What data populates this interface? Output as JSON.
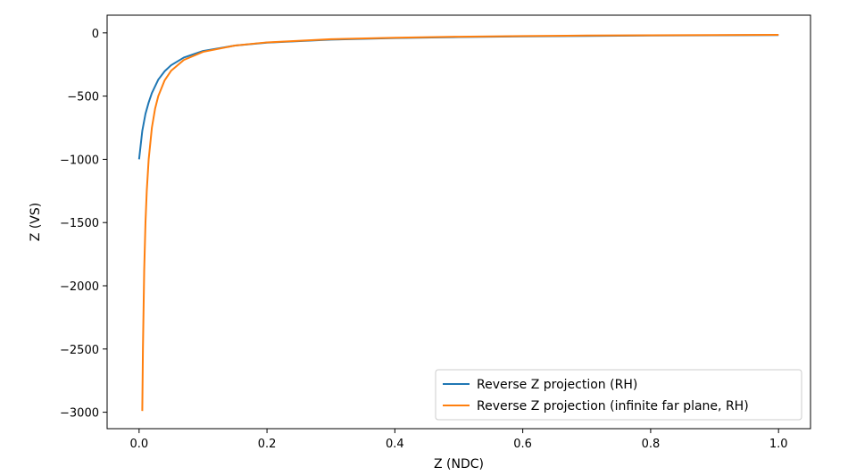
{
  "chart_data": {
    "type": "line",
    "xlabel": "Z (NDC)",
    "ylabel": "Z (VS)",
    "xlim": [
      -0.05,
      1.05
    ],
    "ylim": [
      -3130,
      140
    ],
    "x_ticks": [
      0.0,
      0.2,
      0.4,
      0.6,
      0.8,
      1.0
    ],
    "x_tick_labels": [
      "0.0",
      "0.2",
      "0.4",
      "0.6",
      "0.8",
      "1.0"
    ],
    "y_ticks": [
      0,
      -500,
      -1000,
      -1500,
      -2000,
      -2500,
      -3000
    ],
    "y_tick_labels": [
      "0",
      "−500",
      "−1000",
      "−1500",
      "−2000",
      "−2500",
      "−3000"
    ],
    "legend_position": "lower-right",
    "series": [
      {
        "name": "Reverse Z projection (RH)",
        "color": "#1f77b4",
        "x": [
          0.0,
          0.005,
          0.01,
          0.015,
          0.02,
          0.03,
          0.04,
          0.05,
          0.07,
          0.1,
          0.15,
          0.2,
          0.3,
          0.4,
          0.5,
          0.6,
          0.7,
          0.8,
          0.9,
          1.0
        ],
        "y": [
          -1000,
          -775,
          -640,
          -550,
          -476,
          -370,
          -303,
          -256,
          -195,
          -143,
          -100,
          -77,
          -53,
          -41,
          -33,
          -28,
          -24,
          -21,
          -19,
          -17
        ]
      },
      {
        "name": "Reverse Z projection (infinite far plane, RH)",
        "color": "#ff7f0e",
        "x": [
          0.005,
          0.006,
          0.008,
          0.01,
          0.012,
          0.015,
          0.02,
          0.025,
          0.03,
          0.04,
          0.05,
          0.07,
          0.1,
          0.15,
          0.2,
          0.3,
          0.4,
          0.5,
          0.6,
          0.7,
          0.8,
          0.9,
          1.0
        ],
        "y": [
          -2990,
          -2500,
          -1875,
          -1500,
          -1250,
          -1000,
          -750,
          -600,
          -500,
          -375,
          -300,
          -214,
          -150,
          -100,
          -75,
          -50,
          -38,
          -30,
          -25,
          -21,
          -19,
          -17,
          -15
        ]
      }
    ]
  }
}
